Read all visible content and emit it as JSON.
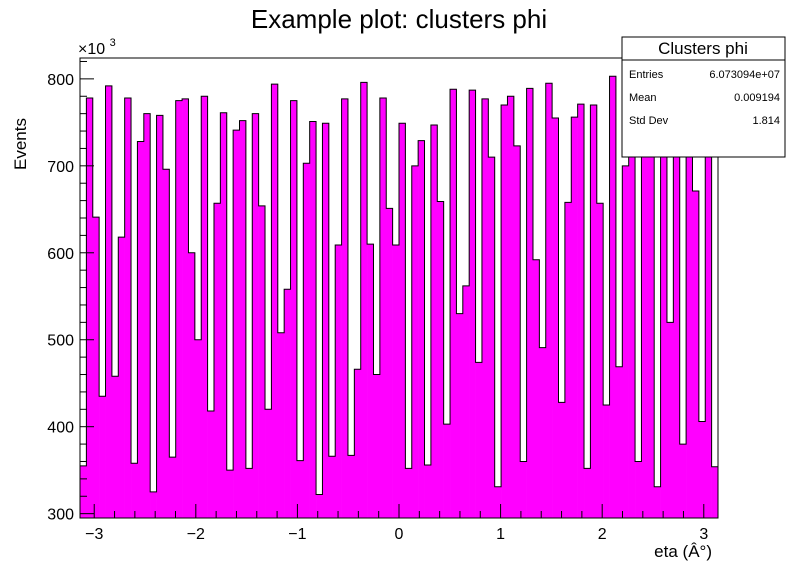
{
  "chart_data": {
    "type": "bar",
    "title": "Example plot: clusters phi",
    "xlabel": "eta (Â°)",
    "ylabel": "Events",
    "y_multiplier": "×10",
    "y_multiplier_exponent": "3",
    "xlim": [
      -3.14,
      3.14
    ],
    "ylim": [
      295,
      824
    ],
    "x_ticks": [
      -3,
      -2,
      -1,
      0,
      1,
      2,
      3
    ],
    "x_tick_labels": [
      "−3",
      "−2",
      "−1",
      "0",
      "1",
      "2",
      "3"
    ],
    "y_ticks": [
      300,
      400,
      500,
      600,
      700,
      800
    ],
    "y_tick_labels": [
      "300",
      "400",
      "500",
      "600",
      "700",
      "800"
    ],
    "fill_color": "#ff00ff",
    "line_color": "#000000",
    "n_bins": 100,
    "values": [
      355,
      778,
      641,
      435,
      792,
      458,
      618,
      778,
      358,
      728,
      760,
      325,
      758,
      696,
      365,
      775,
      777,
      600,
      500,
      780,
      418,
      657,
      761,
      350,
      741,
      752,
      352,
      760,
      654,
      420,
      794,
      508,
      558,
      775,
      361,
      703,
      751,
      322,
      749,
      366,
      609,
      777,
      367,
      466,
      796,
      610,
      460,
      778,
      651,
      609,
      749,
      352,
      700,
      729,
      356,
      747,
      659,
      403,
      788,
      530,
      562,
      787,
      474,
      777,
      710,
      331,
      770,
      780,
      723,
      360,
      789,
      592,
      491,
      795,
      755,
      428,
      658,
      756,
      771,
      352,
      770,
      657,
      425,
      803,
      469,
      700,
      776,
      360,
      725,
      745,
      331,
      751,
      520,
      747,
      380,
      783,
      671,
      406,
      787,
      354
    ]
  },
  "stats_box": {
    "title": "Clusters phi",
    "rows": [
      {
        "label": "Entries",
        "value": "6.073094e+07"
      },
      {
        "label": "Mean",
        "value": "0.009194"
      },
      {
        "label": "Std Dev",
        "value": "1.814"
      }
    ]
  }
}
